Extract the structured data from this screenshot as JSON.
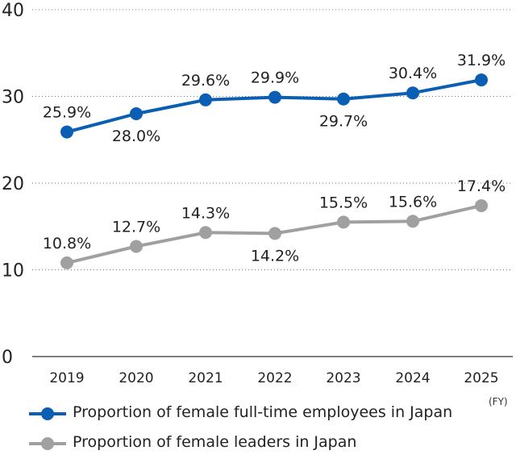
{
  "chart_data": {
    "type": "line",
    "categories": [
      "2019",
      "2020",
      "2021",
      "2022",
      "2023",
      "2024",
      "2025"
    ],
    "x_unit": "(FY)",
    "ylim": [
      0,
      40
    ],
    "yticks": [
      "0",
      "10",
      "20",
      "30",
      "40"
    ],
    "grid": "horizontal dotted",
    "legend_position": "bottom-left",
    "series": [
      {
        "name": "Proportion of female full-time employees in Japan",
        "color": "#0a5fb4",
        "values": [
          25.9,
          28.0,
          29.6,
          29.9,
          29.7,
          30.4,
          31.9
        ],
        "labels": [
          "25.9%",
          "28.0%",
          "29.6%",
          "29.9%",
          "29.7%",
          "30.4%",
          "31.9%"
        ]
      },
      {
        "name": "Proportion of female leaders in Japan",
        "color": "#a0a0a0",
        "values": [
          10.8,
          12.7,
          14.3,
          14.2,
          15.5,
          15.6,
          17.4
        ],
        "labels": [
          "10.8%",
          "12.7%",
          "14.3%",
          "14.2%",
          "15.5%",
          "15.6%",
          "17.4%"
        ]
      }
    ]
  }
}
